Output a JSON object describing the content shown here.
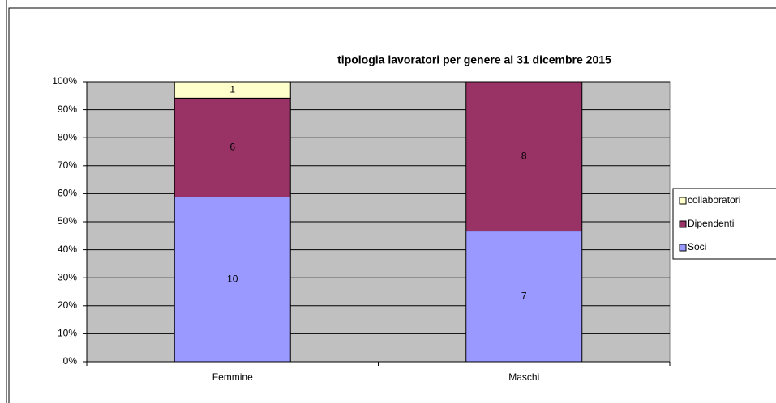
{
  "chart_data": {
    "type": "stacked_percent_bar",
    "title": "tipologia lavoratori per genere al 31 dicembre 2015",
    "categories": [
      "Femmine",
      "Maschi"
    ],
    "series": [
      {
        "name": "Soci",
        "color": "#9999ff",
        "values": [
          10,
          7
        ]
      },
      {
        "name": "Dipendenti",
        "color": "#993366",
        "values": [
          6,
          8
        ]
      },
      {
        "name": "collaboratori",
        "color": "#ffffcc",
        "values": [
          1,
          0
        ]
      }
    ],
    "ylim": [
      0,
      100
    ],
    "yticks": [
      {
        "value": 0,
        "label": "0%"
      },
      {
        "value": 10,
        "label": "10%"
      },
      {
        "value": 20,
        "label": "20%"
      },
      {
        "value": 30,
        "label": "30%"
      },
      {
        "value": 40,
        "label": "40%"
      },
      {
        "value": 50,
        "label": "50%"
      },
      {
        "value": 60,
        "label": "60%"
      },
      {
        "value": 70,
        "label": "70%"
      },
      {
        "value": 80,
        "label": "80%"
      },
      {
        "value": 90,
        "label": "90%"
      },
      {
        "value": 100,
        "label": "100%"
      }
    ],
    "grid": true,
    "legend": "right",
    "plot_background": "#c0c0c0"
  }
}
